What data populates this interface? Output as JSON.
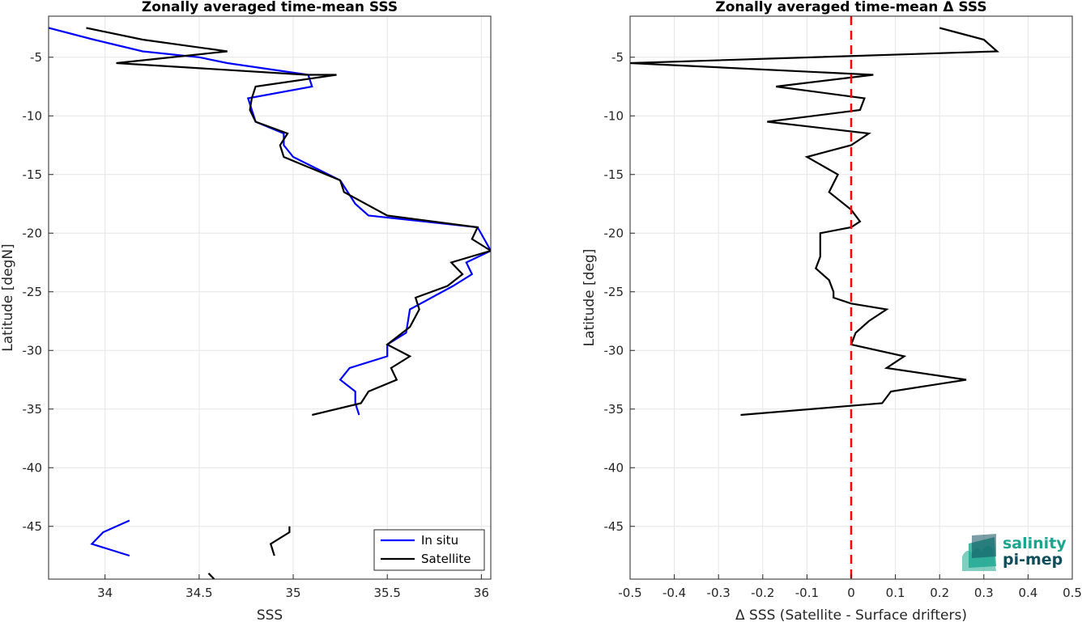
{
  "chart_data": [
    {
      "type": "line",
      "title": "Zonally averaged time-mean SSS",
      "xlabel": "SSS",
      "ylabel": "Latitude [degN]",
      "xlim": [
        33.7,
        36.05
      ],
      "ylim": [
        -49.5,
        -1.5
      ],
      "xticks": [
        34,
        34.5,
        35,
        35.5,
        36
      ],
      "xtick_labels": [
        "34",
        "34.5",
        "35",
        "35.5",
        "36"
      ],
      "yticks": [
        -5,
        -10,
        -15,
        -20,
        -25,
        -30,
        -35,
        -40,
        -45
      ],
      "ytick_labels": [
        "-5",
        "-10",
        "-15",
        "-20",
        "-25",
        "-30",
        "-35",
        "-40",
        "-45"
      ],
      "grid": true,
      "legend_position": "bottom-right",
      "series": [
        {
          "name": "In situ",
          "color": "#0000ff",
          "segments": [
            [
              [
                33.7,
                -2.5
              ],
              [
                33.94,
                -3.5
              ],
              [
                34.2,
                -4.5
              ],
              [
                34.5,
                -5.0
              ],
              [
                34.65,
                -5.5
              ],
              [
                35.08,
                -6.5
              ],
              [
                35.1,
                -7.5
              ],
              [
                34.76,
                -8.5
              ],
              [
                34.8,
                -10.5
              ],
              [
                34.95,
                -11.5
              ],
              [
                34.95,
                -12.5
              ],
              [
                35.0,
                -13.5
              ],
              [
                35.25,
                -15.5
              ],
              [
                35.33,
                -17.5
              ],
              [
                35.4,
                -18.5
              ],
              [
                35.98,
                -19.5
              ],
              [
                36.05,
                -21.5
              ],
              [
                35.92,
                -22.5
              ],
              [
                35.95,
                -23.5
              ],
              [
                35.85,
                -24.5
              ],
              [
                35.62,
                -26.5
              ],
              [
                35.61,
                -27.5
              ],
              [
                35.6,
                -28.5
              ],
              [
                35.5,
                -29.5
              ],
              [
                35.5,
                -30.5
              ],
              [
                35.3,
                -31.5
              ],
              [
                35.25,
                -32.5
              ],
              [
                35.33,
                -33.5
              ],
              [
                35.33,
                -34.5
              ],
              [
                35.35,
                -35.5
              ]
            ],
            [
              [
                34.13,
                -44.5
              ],
              [
                33.99,
                -45.5
              ],
              [
                33.93,
                -46.5
              ],
              [
                34.13,
                -47.5
              ]
            ]
          ]
        },
        {
          "name": "Satellite",
          "color": "#000000",
          "segments": [
            [
              [
                33.9,
                -2.5
              ],
              [
                34.2,
                -3.5
              ],
              [
                34.65,
                -4.5
              ],
              [
                34.06,
                -5.5
              ],
              [
                35.07,
                -6.5
              ],
              [
                35.23,
                -6.5
              ],
              [
                34.8,
                -7.5
              ],
              [
                34.78,
                -8.5
              ],
              [
                34.77,
                -9.5
              ],
              [
                34.8,
                -10.5
              ],
              [
                34.97,
                -11.5
              ],
              [
                34.93,
                -12.5
              ],
              [
                34.95,
                -13.5
              ],
              [
                35.25,
                -15.5
              ],
              [
                35.27,
                -16.5
              ],
              [
                35.5,
                -18.5
              ],
              [
                35.98,
                -19.5
              ],
              [
                35.95,
                -20.5
              ],
              [
                36.05,
                -21.5
              ],
              [
                35.84,
                -22.5
              ],
              [
                35.9,
                -23.5
              ],
              [
                35.82,
                -24.5
              ],
              [
                35.65,
                -25.5
              ],
              [
                35.67,
                -26.5
              ],
              [
                35.62,
                -28.0
              ],
              [
                35.5,
                -29.5
              ],
              [
                35.62,
                -30.5
              ],
              [
                35.52,
                -31.5
              ],
              [
                35.55,
                -32.5
              ],
              [
                35.4,
                -33.5
              ],
              [
                35.36,
                -34.5
              ],
              [
                35.1,
                -35.5
              ]
            ],
            [
              [
                34.98,
                -45.0
              ],
              [
                34.98,
                -45.5
              ],
              [
                34.88,
                -46.5
              ],
              [
                34.9,
                -47.5
              ]
            ],
            [
              [
                34.55,
                -49.0
              ],
              [
                34.58,
                -49.5
              ]
            ]
          ]
        }
      ]
    },
    {
      "type": "line",
      "title": "Zonally averaged time-mean Δ SSS",
      "xlabel": "Δ SSS (Satellite - Surface drifters)",
      "ylabel": "Latitude [deg]",
      "xlim": [
        -0.5,
        0.5
      ],
      "ylim": [
        -49.5,
        -1.5
      ],
      "xticks": [
        -0.5,
        -0.4,
        -0.3,
        -0.2,
        -0.1,
        0,
        0.1,
        0.2,
        0.3,
        0.4,
        0.5
      ],
      "xtick_labels": [
        "-0.5",
        "-0.4",
        "-0.3",
        "-0.2",
        "-0.1",
        "0",
        "0.1",
        "0.2",
        "0.3",
        "0.4",
        "0.5"
      ],
      "yticks": [
        -5,
        -10,
        -15,
        -20,
        -25,
        -30,
        -35,
        -40,
        -45
      ],
      "ytick_labels": [
        "-5",
        "-10",
        "-15",
        "-20",
        "-25",
        "-30",
        "-35",
        "-40",
        "-45"
      ],
      "grid": true,
      "reference_line": {
        "x": 0,
        "color": "#ff0000",
        "style": "dashed"
      },
      "series": [
        {
          "color": "#000000",
          "segments": [
            [
              [
                0.2,
                -2.5
              ],
              [
                0.3,
                -3.5
              ],
              [
                0.33,
                -4.5
              ],
              [
                -0.5,
                -5.5
              ],
              [
                0.05,
                -6.5
              ],
              [
                -0.17,
                -7.5
              ],
              [
                0.03,
                -8.5
              ],
              [
                0.02,
                -9.5
              ],
              [
                -0.19,
                -10.5
              ],
              [
                0.04,
                -11.5
              ],
              [
                0.0,
                -12.5
              ],
              [
                -0.1,
                -13.5
              ],
              [
                -0.03,
                -15.0
              ],
              [
                -0.05,
                -16.5
              ],
              [
                0.0,
                -18.0
              ],
              [
                0.02,
                -19.0
              ],
              [
                0.0,
                -19.5
              ],
              [
                -0.07,
                -20.0
              ],
              [
                -0.07,
                -21.0
              ],
              [
                -0.07,
                -22.0
              ],
              [
                -0.08,
                -23.0
              ],
              [
                -0.05,
                -24.0
              ],
              [
                -0.04,
                -25.0
              ],
              [
                -0.04,
                -25.5
              ],
              [
                0.0,
                -26.0
              ],
              [
                0.08,
                -26.5
              ],
              [
                0.04,
                -27.5
              ],
              [
                0.01,
                -28.5
              ],
              [
                0.0,
                -29.5
              ],
              [
                0.12,
                -30.5
              ],
              [
                0.08,
                -31.5
              ],
              [
                0.26,
                -32.5
              ],
              [
                0.09,
                -33.5
              ],
              [
                0.07,
                -34.5
              ],
              [
                -0.25,
                -35.5
              ]
            ]
          ]
        }
      ]
    }
  ],
  "legend": {
    "entries": [
      "In situ",
      "Satellite"
    ],
    "colors": [
      "#0000ff",
      "#000000"
    ]
  },
  "logo": {
    "line1": "salinity",
    "line2": "pi-mep",
    "colors": [
      "#1aa68e",
      "#0e4f5c"
    ]
  }
}
